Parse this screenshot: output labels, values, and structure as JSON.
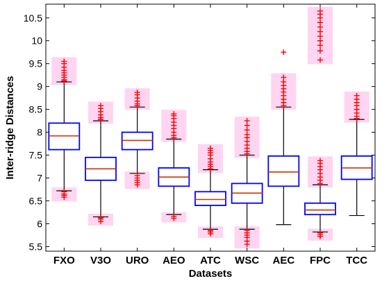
{
  "chart_data": {
    "type": "box",
    "title": "",
    "xlabel": "Datasets",
    "ylabel": "Inter-ridge Distances",
    "ylim": [
      5.4,
      10.8
    ],
    "yticks": [
      5.5,
      6,
      6.5,
      7,
      7.5,
      8,
      8.5,
      9,
      9.5,
      10,
      10.5
    ],
    "ytick_labels": [
      "5.5",
      "6",
      "6.5",
      "7",
      "7.5",
      "8",
      "8.5",
      "9",
      "9.5",
      "10",
      "10.5"
    ],
    "categories": [
      "FXO",
      "V3O",
      "URO",
      "AEO",
      "ATC",
      "WSC",
      "AEC",
      "FPC",
      "TCC"
    ],
    "grid": false,
    "legend": "none",
    "colors": {
      "box": "#0000ff",
      "median": "#cc3300",
      "whisker": "#000000",
      "outlier": "#ff0000",
      "outlier_shadow": "#ffb3e6"
    },
    "boxes": [
      {
        "name": "FXO",
        "whislo": 6.72,
        "q1": 7.62,
        "median": 7.92,
        "q3": 8.2,
        "whishi": 9.1,
        "outliers_low": [
          6.58,
          6.62,
          6.65,
          6.7
        ],
        "outliers_high": [
          9.12,
          9.15,
          9.2,
          9.25,
          9.3,
          9.35,
          9.42,
          9.5,
          9.55
        ]
      },
      {
        "name": "V3O",
        "whislo": 6.15,
        "q1": 6.95,
        "median": 7.2,
        "q3": 7.45,
        "whishi": 8.25,
        "outliers_low": [
          6.05,
          6.1,
          6.13
        ],
        "outliers_high": [
          8.28,
          8.32,
          8.38,
          8.45,
          8.52,
          8.58
        ]
      },
      {
        "name": "URO",
        "whislo": 7.1,
        "q1": 7.62,
        "median": 7.82,
        "q3": 8.0,
        "whishi": 8.55,
        "outliers_low": [
          6.85,
          6.9,
          6.95,
          7.0,
          7.05
        ],
        "outliers_high": [
          8.58,
          8.62,
          8.68,
          8.75,
          8.82,
          8.87
        ]
      },
      {
        "name": "AEO",
        "whislo": 6.2,
        "q1": 6.82,
        "median": 7.02,
        "q3": 7.22,
        "whishi": 7.85,
        "outliers_low": [
          6.12,
          6.16
        ],
        "outliers_high": [
          7.88,
          7.93,
          8.0,
          8.08,
          8.15,
          8.22,
          8.3,
          8.36,
          8.4
        ]
      },
      {
        "name": "ATC",
        "whislo": 5.88,
        "q1": 6.4,
        "median": 6.53,
        "q3": 6.7,
        "whishi": 7.18,
        "outliers_low": [
          5.78,
          5.82,
          5.85
        ],
        "outliers_high": [
          7.2,
          7.25,
          7.3,
          7.35,
          7.42,
          7.5,
          7.55,
          7.6,
          7.65
        ]
      },
      {
        "name": "WSC",
        "whislo": 5.88,
        "q1": 6.45,
        "median": 6.67,
        "q3": 6.88,
        "whishi": 7.5,
        "outliers_low": [
          5.55,
          5.62,
          5.7,
          5.75,
          5.8,
          5.85
        ],
        "outliers_high": [
          7.53,
          7.58,
          7.65,
          7.72,
          7.8,
          7.88,
          7.95,
          8.05,
          8.15,
          8.25
        ]
      },
      {
        "name": "AEC",
        "whislo": 5.98,
        "q1": 6.82,
        "median": 7.13,
        "q3": 7.48,
        "whishi": 8.55,
        "outliers_low": [],
        "outliers_high": [
          8.58,
          8.65,
          8.72,
          8.8,
          8.88,
          8.95,
          9.02,
          9.1,
          9.2,
          9.75
        ]
      },
      {
        "name": "FPC",
        "whislo": 5.82,
        "q1": 6.2,
        "median": 6.3,
        "q3": 6.45,
        "whishi": 6.85,
        "outliers_low": [
          5.72,
          5.76,
          5.8
        ],
        "outliers_high": [
          6.88,
          6.95,
          7.02,
          7.1,
          7.18,
          7.25,
          7.32,
          7.38,
          9.58,
          9.78,
          9.9,
          10.0,
          10.1,
          10.2,
          10.3,
          10.4,
          10.5,
          10.58,
          10.65
        ]
      },
      {
        "name": "TCC",
        "whislo": 6.18,
        "q1": 6.97,
        "median": 7.22,
        "q3": 7.48,
        "whishi": 8.28,
        "outliers_low": [],
        "outliers_high": [
          8.3,
          8.35,
          8.42,
          8.5,
          8.58,
          8.65,
          8.72,
          8.8
        ]
      }
    ]
  }
}
